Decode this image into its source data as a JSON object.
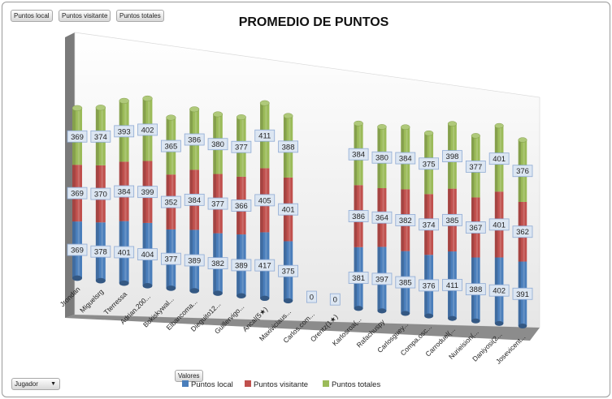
{
  "filters": {
    "top": [
      "Puntos local",
      "Puntos visitante",
      "Puntos totales"
    ],
    "values_button": "Valores",
    "row_field": "Jugador"
  },
  "colors": {
    "local": "#4a7ebb",
    "visitante": "#c0504d",
    "totales": "#9bbb59"
  },
  "chart_data": {
    "type": "bar",
    "stacked": true,
    "three_d": true,
    "title": "PROMEDIO DE PUNTOS",
    "categories": [
      "Jrondan",
      "Miguelsrg",
      "Tterressa",
      "Adrian.200...",
      "Bokiskywal...",
      "Elbancoma...",
      "Dieguito12...",
      "Guillervigo...",
      "Ancal(5★)",
      "Maxiviciaus...",
      "Carlos.com...",
      "Orentz(1★)",
      "Karlosroa(...",
      "Rafachuspy",
      "Carlosguey...",
      "Compa.osc...",
      "Carroduel(...",
      "Nurieision(...",
      "Daniyosi(2...",
      "Josevicent..."
    ],
    "series": [
      {
        "name": "Puntos local",
        "color_key": "local",
        "values": [
          369,
          378,
          401,
          404,
          377,
          389,
          382,
          389,
          417,
          375,
          0,
          0,
          381,
          397,
          385,
          376,
          411,
          388,
          402,
          391
        ]
      },
      {
        "name": "Puntos visitante",
        "color_key": "visitante",
        "values": [
          369,
          370,
          384,
          399,
          352,
          384,
          377,
          366,
          405,
          401,
          0,
          0,
          386,
          364,
          382,
          374,
          385,
          367,
          401,
          362
        ]
      },
      {
        "name": "Puntos totales",
        "color_key": "totales",
        "values": [
          369,
          374,
          393,
          402,
          365,
          386,
          380,
          377,
          411,
          388,
          0,
          0,
          384,
          380,
          384,
          375,
          398,
          377,
          401,
          376
        ]
      }
    ],
    "legend": [
      "Puntos local",
      "Puntos visitante",
      "Puntos totales"
    ],
    "legend_position": "bottom",
    "grid": false
  }
}
